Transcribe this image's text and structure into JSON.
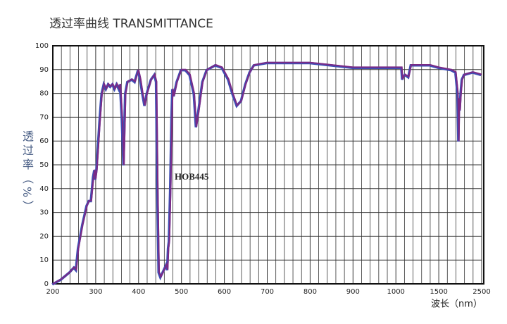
{
  "chart_data": {
    "type": "line",
    "title": "透过率曲线 TRANSMITTANCE",
    "x_label": "波长（nm）",
    "y_label": "透过率（%）",
    "annotation": "HOB445",
    "color": "#7b2a86",
    "grid": true,
    "x_scale": "piecewise",
    "xlim": [
      200,
      2500
    ],
    "xticks": [
      200,
      300,
      400,
      500,
      600,
      700,
      800,
      900,
      1000,
      1500,
      2500
    ],
    "ylim": [
      0,
      100
    ],
    "yticks": [
      0,
      10,
      20,
      30,
      40,
      50,
      60,
      70,
      80,
      90,
      100
    ],
    "x": [
      200,
      220,
      240,
      250,
      255,
      260,
      270,
      280,
      285,
      290,
      295,
      298,
      300,
      303,
      310,
      315,
      320,
      325,
      330,
      335,
      340,
      345,
      350,
      355,
      358,
      362,
      366,
      370,
      375,
      385,
      392,
      400,
      405,
      410,
      415,
      420,
      430,
      438,
      442,
      445,
      448,
      452,
      460,
      465,
      468,
      470,
      472,
      475,
      478,
      480,
      483,
      490,
      500,
      510,
      520,
      530,
      535,
      540,
      550,
      560,
      580,
      595,
      610,
      620,
      630,
      640,
      650,
      660,
      670,
      700,
      800,
      900,
      1000,
      1070,
      1080,
      1090,
      1110,
      1150,
      1180,
      1400,
      1500,
      1800,
      1900,
      1950,
      1970,
      1985,
      2000,
      2020,
      2050,
      2100,
      2300,
      2500
    ],
    "values": [
      0,
      2,
      5,
      7,
      6,
      15,
      25,
      33,
      35,
      35,
      45,
      48,
      44,
      48,
      68,
      80,
      84,
      82,
      84,
      83,
      84,
      82,
      84,
      82,
      84,
      70,
      50,
      80,
      85,
      86,
      85,
      90,
      86,
      80,
      75,
      80,
      86,
      88,
      85,
      40,
      5,
      3,
      6,
      8,
      6,
      15,
      18,
      40,
      70,
      82,
      79,
      85,
      90,
      90,
      88,
      80,
      66,
      72,
      85,
      90,
      92,
      91,
      86,
      80,
      75,
      77,
      84,
      89,
      92,
      93,
      93,
      91,
      91,
      91,
      86,
      87,
      88,
      87,
      92,
      92,
      91,
      90,
      89,
      80,
      60,
      78,
      73,
      80,
      86,
      88,
      89,
      88
    ]
  }
}
